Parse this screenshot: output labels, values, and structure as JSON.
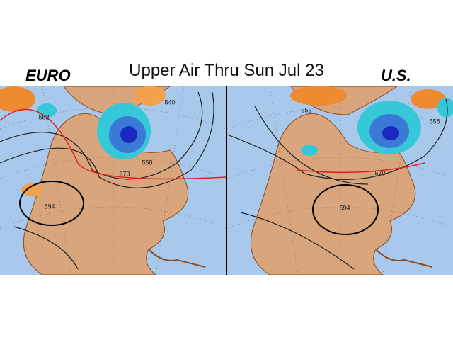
{
  "header": {
    "title": "Upper Air Thru Sun Jul 23"
  },
  "panels": [
    {
      "label": "EURO",
      "contour_labels": [
        "552",
        "540",
        "558",
        "573",
        "594"
      ]
    },
    {
      "label": "U.S.",
      "contour_labels": [
        "552",
        "558",
        "570",
        "594"
      ]
    }
  ]
}
